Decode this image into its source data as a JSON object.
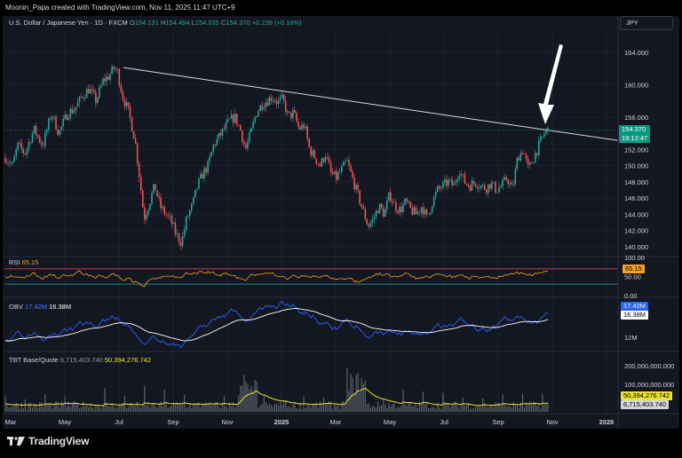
{
  "header": {
    "text": "Moonin_Papa created with TradingView.com, Nov 11, 2025 11:47 UTC+9"
  },
  "currency_button": "JPY",
  "symbol_legend": {
    "title": "U.S. Dollar / Japanese Yen · 1D · FXCM",
    "open_label": "O",
    "open": "154.131",
    "high_label": "H",
    "high": "154.494",
    "low_label": "L",
    "low": "154.035",
    "close_label": "C",
    "close": "154.370",
    "change": "+0.239 (+0.16%)"
  },
  "price_tag": {
    "price": "154.370",
    "countdown": "19:12:47"
  },
  "rsi": {
    "label": "RSI",
    "value": "65.15",
    "upper_label": "100.00",
    "mid_label": "50.00",
    "low_label": "0.00"
  },
  "obv": {
    "label": "OBV",
    "value": "17.42M",
    "ma_value": "16.38M",
    "axis_label": "12M"
  },
  "tbt": {
    "label": "TBT Base/Quote",
    "quote_value": "6,715,403.740",
    "base_value": "50,394,276.742",
    "axis_labels": [
      "200,000,000.000",
      "100,000,000.000"
    ]
  },
  "colors": {
    "up": "#26a69a",
    "down": "#ef5350",
    "rsi": "#f7a21b",
    "obv": "#2962ff",
    "tbt_ma": "#f0e130",
    "trendline": "#d9d9d9",
    "background": "#131722"
  },
  "chart_data": {
    "type": "candlestick",
    "title": "U.S. Dollar / Japanese Yen · 1D · FXCM",
    "x_ticks": [
      "Mar",
      "May",
      "Jul",
      "Sep",
      "Nov",
      "2025",
      "Mar",
      "May",
      "Jul",
      "Sep",
      "Nov",
      "2026"
    ],
    "y_ticks": [
      140,
      142,
      144,
      146,
      148,
      150,
      152,
      154,
      156,
      160,
      164
    ],
    "y_tick_labels": [
      "140.000",
      "142.000",
      "144.000",
      "146.000",
      "148.000",
      "150.000",
      "152.000",
      "156.000",
      "160.000",
      "164.000"
    ],
    "ylim": [
      139.0,
      166.5
    ],
    "price_path": [
      [
        0,
        150.5
      ],
      [
        6,
        151.0
      ],
      [
        14,
        150.0
      ],
      [
        20,
        152.5
      ],
      [
        28,
        151.5
      ],
      [
        38,
        154.5
      ],
      [
        48,
        152.5
      ],
      [
        58,
        156.5
      ],
      [
        66,
        154.0
      ],
      [
        76,
        156.5
      ],
      [
        84,
        157.0
      ],
      [
        92,
        158.5
      ],
      [
        100,
        159.5
      ],
      [
        108,
        158.0
      ],
      [
        116,
        160.5
      ],
      [
        122,
        161.0
      ],
      [
        128,
        162.0
      ],
      [
        132,
        161.6
      ],
      [
        138,
        158.5
      ],
      [
        145,
        156.5
      ],
      [
        152,
        153.0
      ],
      [
        158,
        147.5
      ],
      [
        162,
        143.5
      ],
      [
        168,
        145.5
      ],
      [
        174,
        147.5
      ],
      [
        180,
        145.0
      ],
      [
        186,
        144.0
      ],
      [
        192,
        143.2
      ],
      [
        198,
        141.5
      ],
      [
        204,
        140.5
      ],
      [
        210,
        143.5
      ],
      [
        216,
        145.0
      ],
      [
        222,
        147.5
      ],
      [
        228,
        149.0
      ],
      [
        234,
        150.0
      ],
      [
        240,
        152.5
      ],
      [
        246,
        153.5
      ],
      [
        252,
        154.5
      ],
      [
        258,
        155.5
      ],
      [
        264,
        156.0
      ],
      [
        270,
        154.5
      ],
      [
        276,
        152.0
      ],
      [
        282,
        154.0
      ],
      [
        288,
        156.5
      ],
      [
        294,
        157.5
      ],
      [
        300,
        158.0
      ],
      [
        306,
        158.5
      ],
      [
        312,
        157.8
      ],
      [
        318,
        158.2
      ],
      [
        324,
        156.0
      ],
      [
        330,
        156.5
      ],
      [
        336,
        154.5
      ],
      [
        342,
        155.0
      ],
      [
        348,
        152.0
      ],
      [
        354,
        151.0
      ],
      [
        360,
        150.0
      ],
      [
        366,
        151.5
      ],
      [
        372,
        149.0
      ],
      [
        378,
        148.5
      ],
      [
        384,
        149.5
      ],
      [
        390,
        150.5
      ],
      [
        396,
        148.5
      ],
      [
        402,
        146.5
      ],
      [
        408,
        144.5
      ],
      [
        414,
        142.5
      ],
      [
        420,
        143.5
      ],
      [
        426,
        145.0
      ],
      [
        432,
        144.0
      ],
      [
        438,
        146.5
      ],
      [
        444,
        145.0
      ],
      [
        450,
        144.5
      ],
      [
        456,
        145.5
      ],
      [
        462,
        144.5
      ],
      [
        468,
        144.0
      ],
      [
        474,
        145.0
      ],
      [
        480,
        143.5
      ],
      [
        486,
        145.5
      ],
      [
        492,
        147.0
      ],
      [
        498,
        147.5
      ],
      [
        504,
        148.0
      ],
      [
        510,
        147.5
      ],
      [
        516,
        149.5
      ],
      [
        522,
        148.0
      ],
      [
        528,
        147.5
      ],
      [
        534,
        148.0
      ],
      [
        540,
        147.5
      ],
      [
        546,
        147.2
      ],
      [
        552,
        147.8
      ],
      [
        558,
        147.0
      ],
      [
        564,
        147.5
      ],
      [
        570,
        148.5
      ],
      [
        576,
        147.0
      ],
      [
        582,
        151.0
      ],
      [
        588,
        152.0
      ],
      [
        594,
        149.5
      ],
      [
        600,
        151.0
      ],
      [
        606,
        152.5
      ],
      [
        612,
        154.0
      ],
      [
        616,
        154.37
      ]
    ],
    "trendline": [
      [
        134,
        162.1
      ],
      [
        696,
        153.1
      ]
    ],
    "rsi_value": 65.15,
    "rsi_levels": [
      70,
      30
    ],
    "obv_value": 17.42,
    "obv_ma_value": 16.38
  }
}
